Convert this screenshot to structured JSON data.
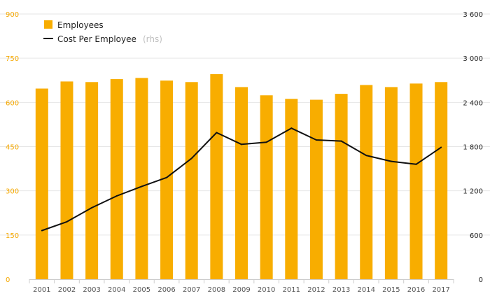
{
  "colors": {
    "bar": "#f8ad00",
    "line": "#111111",
    "grid": "#e6e6e6",
    "left_axis_text": "#f5a800",
    "right_axis_text": "#222222"
  },
  "legend": {
    "employees": "Employees",
    "cost_label": "Cost Per Employee",
    "cost_suffix": "(rhs)"
  },
  "chart_data": {
    "type": "bar",
    "categories": [
      "2001",
      "2002",
      "2003",
      "2004",
      "2005",
      "2006",
      "2007",
      "2008",
      "2009",
      "2010",
      "2011",
      "2012",
      "2013",
      "2014",
      "2015",
      "2016",
      "2017"
    ],
    "series": [
      {
        "name": "Employees",
        "type": "bar",
        "axis": "left",
        "values": [
          647,
          671,
          669,
          679,
          683,
          674,
          669,
          696,
          652,
          624,
          612,
          609,
          629,
          659,
          652,
          664,
          669
        ]
      },
      {
        "name": "Cost Per Employee",
        "type": "line",
        "axis": "right",
        "values": [
          660,
          780,
          970,
          1130,
          1260,
          1380,
          1640,
          1990,
          1830,
          1860,
          2050,
          1890,
          1875,
          1680,
          1600,
          1560,
          1790
        ]
      }
    ],
    "y_left": {
      "ticks": [
        "0",
        "150",
        "300",
        "450",
        "600",
        "750",
        "900"
      ],
      "ylim": [
        0,
        900
      ]
    },
    "y_right": {
      "ticks": [
        "0",
        "600",
        "1 200",
        "1 800",
        "2 400",
        "3 000",
        "3 600"
      ],
      "ylim": [
        0,
        3600
      ]
    },
    "grid": true,
    "legend_position": "top-left"
  }
}
